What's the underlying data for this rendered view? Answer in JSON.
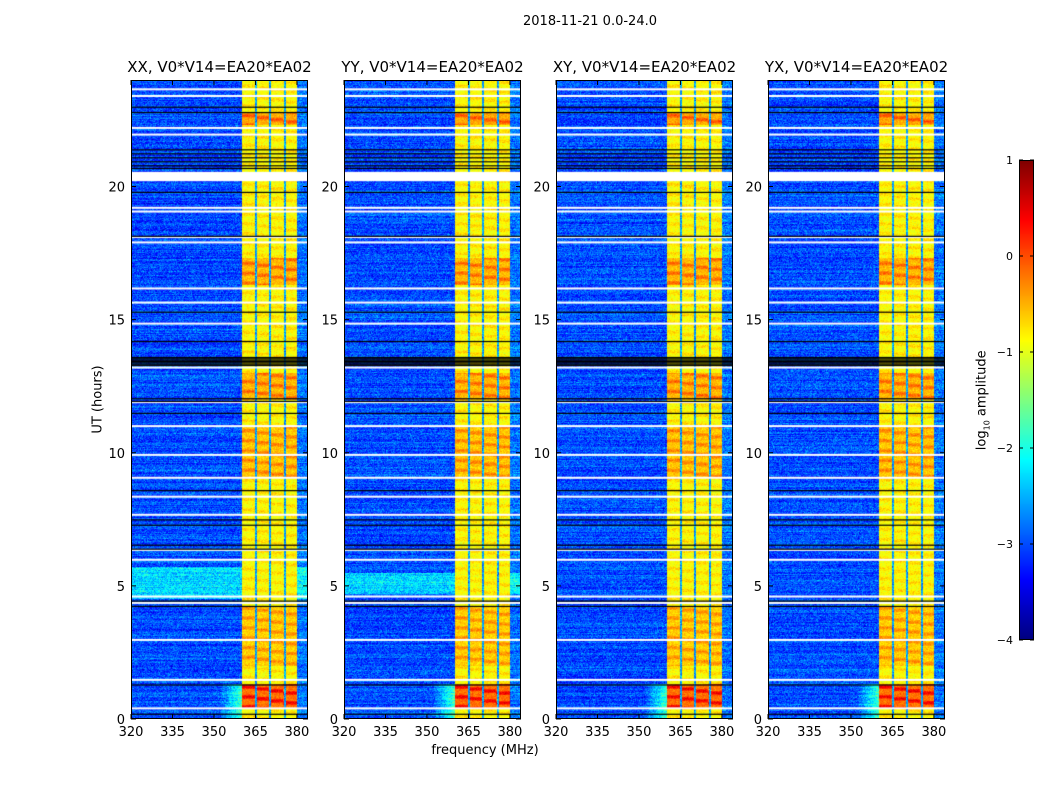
{
  "chart_data": {
    "type": "heatmap",
    "suptitle": "2018-11-21 0.0-24.0",
    "xlabel": "frequency (MHz)",
    "ylabel": "UT (hours)",
    "xlim": [
      320,
      384
    ],
    "ylim": [
      0,
      24
    ],
    "xticks": [
      320,
      335,
      350,
      365,
      380
    ],
    "xtick_labels": [
      "320",
      "335",
      "350",
      "365",
      "380"
    ],
    "yticks": [
      0,
      5,
      10,
      15,
      20
    ],
    "ytick_labels": [
      "0",
      "5",
      "10",
      "15",
      "20"
    ],
    "panels": [
      {
        "title": "XX, V0*V14=EA20*EA02",
        "seed": 11,
        "bright_rows_hours": [
          4.5,
          5.7
        ]
      },
      {
        "title": "YY, V0*V14=EA20*EA02",
        "seed": 23,
        "bright_rows_hours": [
          4.7,
          5.5
        ]
      },
      {
        "title": "XY, V0*V14=EA20*EA02",
        "seed": 37,
        "bright_rows_hours": null
      },
      {
        "title": "YX, V0*V14=EA20*EA02",
        "seed": 51,
        "bright_rows_hours": null
      }
    ],
    "background_log_amplitude": -3.0,
    "rfi_band_mhz": [
      360,
      380
    ],
    "rfi_band_log_amplitude": -0.9,
    "subband_gaps_mhz": [
      365.3,
      370.3,
      375.6
    ],
    "bursts": [
      {
        "hours": [
          0.4,
          1.3
        ],
        "add": 0.9
      },
      {
        "hours": [
          2.0,
          4.2
        ],
        "add": 0.3
      },
      {
        "hours": [
          9.0,
          11.0
        ],
        "add": 0.35
      },
      {
        "hours": [
          12.0,
          13.0
        ],
        "add": 0.45
      },
      {
        "hours": [
          16.3,
          17.3
        ],
        "add": 0.45
      },
      {
        "hours": [
          22.3,
          22.8
        ],
        "add": 0.55
      }
    ],
    "flagged_times_hours": [
      0.4,
      1.47,
      2.97,
      4.36,
      4.6,
      5.98,
      6.35,
      7.67,
      8.35,
      9.06,
      9.92,
      11.0,
      11.9,
      13.2,
      14.85,
      15.64,
      16.17,
      17.9,
      18.1,
      19.06,
      19.2,
      [
        20.2,
        20.55
      ],
      21.95,
      22.2,
      23.4,
      23.65
    ],
    "dark_rows_hours": [
      0.2,
      1.3,
      4.25,
      4.45,
      6.4,
      6.55,
      7.3,
      7.5,
      8.6,
      11.5,
      11.95,
      12.05,
      13.3,
      13.35,
      13.4,
      13.45,
      13.5,
      13.55,
      13.6,
      14.2,
      15.3,
      18.15,
      19.8,
      20.7,
      20.8,
      20.95,
      21.1,
      21.25,
      21.4,
      22.8,
      23.0
    ],
    "colorbar": {
      "label_prefix": "log",
      "label_sub": "10",
      "label_suffix": " amplitude",
      "range": [
        -4,
        1
      ],
      "ticks": [
        1,
        0,
        -1,
        -2,
        -3,
        -4
      ],
      "tick_labels": [
        "1",
        "0",
        "−1",
        "−2",
        "−3",
        "−4"
      ],
      "colormap": "jet"
    }
  }
}
